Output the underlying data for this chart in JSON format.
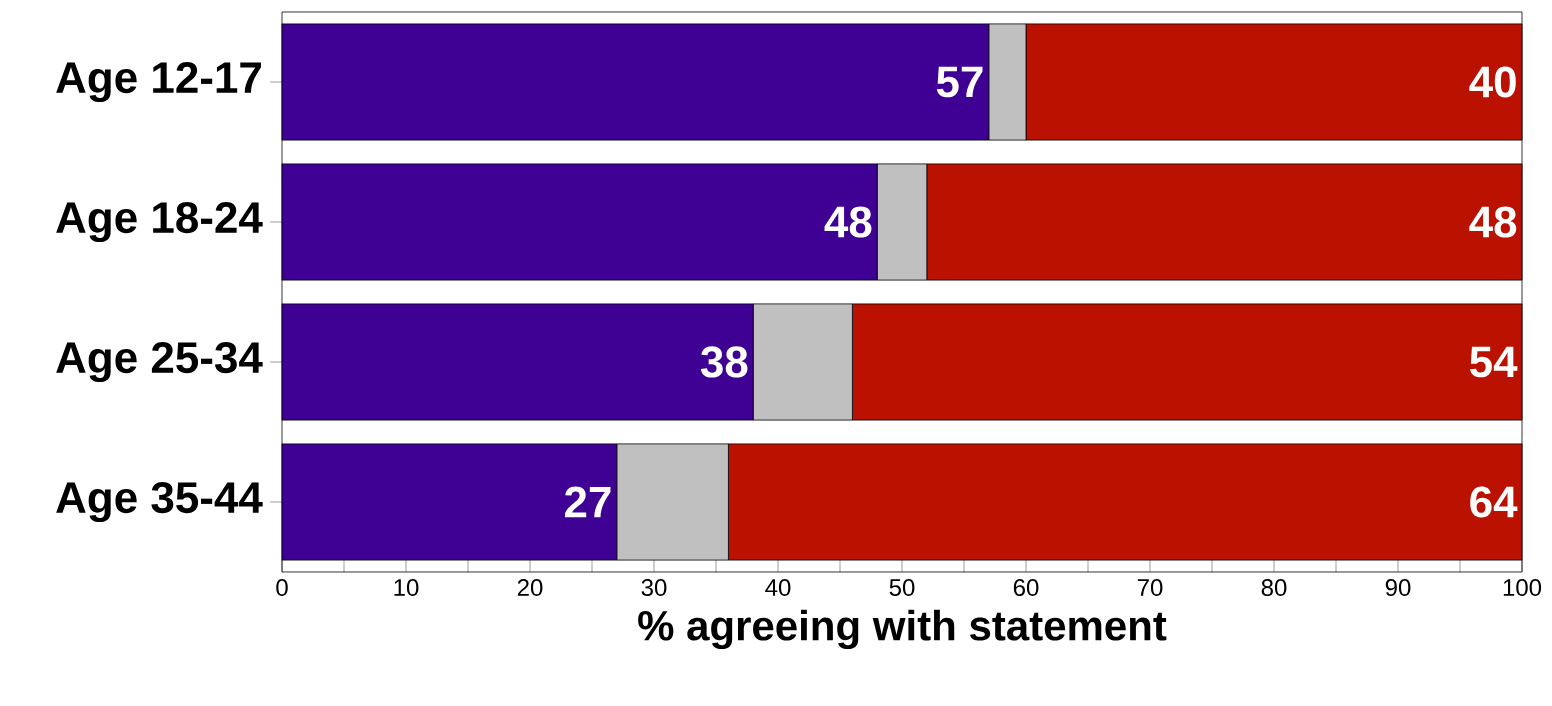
{
  "chart_data": {
    "type": "bar",
    "orientation": "horizontal",
    "stacked": true,
    "categories": [
      "Age 12-17",
      "Age 18-24",
      "Age 25-34",
      "Age 35-44"
    ],
    "series": [
      {
        "color": "#3f0094",
        "values": [
          57,
          48,
          38,
          27
        ],
        "value_labels": [
          "57",
          "48",
          "38",
          "27"
        ]
      },
      {
        "color": "#c0c0c0",
        "values": [
          3,
          4,
          8,
          9
        ]
      },
      {
        "color": "#bb1100",
        "values": [
          40,
          48,
          54,
          64
        ],
        "value_labels": [
          "40",
          "48",
          "54",
          "64"
        ]
      }
    ],
    "xlabel": "% agreeing with statement",
    "xlim": [
      0,
      100
    ],
    "xticks": [
      0,
      {
        "value": 5,
        "label": null
      },
      10,
      {
        "value": 15,
        "label": null
      },
      20,
      {
        "value": 25,
        "label": null
      },
      30,
      {
        "value": 35,
        "label": null
      },
      40,
      {
        "value": 45,
        "label": null
      },
      50,
      {
        "value": 55,
        "label": null
      },
      60,
      {
        "value": 65,
        "label": null
      },
      70,
      {
        "value": 75,
        "label": null
      },
      80,
      {
        "value": 85,
        "label": null
      },
      90,
      {
        "value": 95,
        "label": null
      },
      100
    ]
  }
}
